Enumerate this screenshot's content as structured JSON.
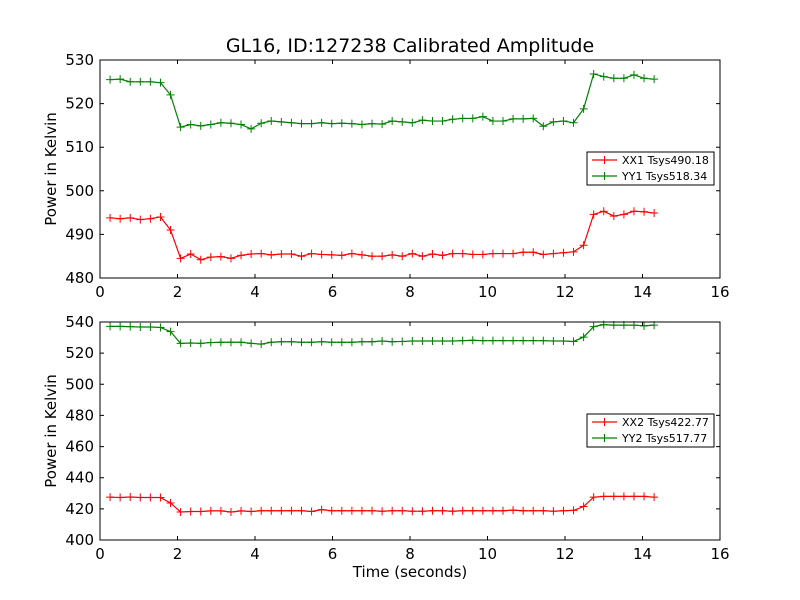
{
  "figure": {
    "title": "GL16, ID:127238 Calibrated Amplitude"
  },
  "chart_data": [
    {
      "type": "line",
      "title": "GL16, ID:127238 Calibrated Amplitude",
      "xlabel": "",
      "ylabel": "Power in Kelvin",
      "xlim": [
        0,
        16
      ],
      "ylim": [
        480,
        530
      ],
      "xticks": [
        "0",
        "2",
        "4",
        "6",
        "8",
        "10",
        "12",
        "14",
        "16"
      ],
      "yticks": [
        "480",
        "490",
        "500",
        "510",
        "520",
        "530"
      ],
      "grid": false,
      "legend_position": "center-right",
      "x": [
        0.26,
        0.52,
        0.78,
        1.04,
        1.3,
        1.56,
        1.82,
        2.08,
        2.34,
        2.6,
        2.86,
        3.12,
        3.38,
        3.64,
        3.9,
        4.16,
        4.42,
        4.68,
        4.94,
        5.2,
        5.46,
        5.72,
        5.98,
        6.24,
        6.5,
        6.76,
        7.02,
        7.28,
        7.54,
        7.8,
        8.06,
        8.32,
        8.58,
        8.84,
        9.1,
        9.36,
        9.62,
        9.88,
        10.14,
        10.4,
        10.66,
        10.92,
        11.18,
        11.44,
        11.7,
        11.96,
        12.22,
        12.48,
        12.74,
        13.0,
        13.26,
        13.52,
        13.78,
        14.04,
        14.3
      ],
      "series": [
        {
          "name": "XX1 Tsys490.18",
          "color": "#ff0000",
          "values": [
            493.8,
            493.6,
            493.8,
            493.4,
            493.6,
            494.0,
            491.0,
            484.5,
            485.5,
            484.2,
            484.8,
            484.9,
            484.5,
            485.2,
            485.5,
            485.6,
            485.3,
            485.5,
            485.5,
            485.0,
            485.6,
            485.4,
            485.3,
            485.2,
            485.6,
            485.3,
            485.0,
            485.0,
            485.3,
            485.0,
            485.6,
            485.0,
            485.5,
            485.2,
            485.6,
            485.6,
            485.4,
            485.4,
            485.6,
            485.6,
            485.6,
            485.9,
            485.9,
            485.4,
            485.6,
            485.8,
            486.0,
            487.5,
            494.6,
            495.3,
            494.2,
            494.6,
            495.3,
            495.2,
            494.9
          ]
        },
        {
          "name": "YY1 Tsys518.34",
          "color": "#008000",
          "values": [
            525.5,
            525.6,
            525.0,
            525.0,
            525.0,
            524.8,
            522.0,
            514.6,
            515.2,
            514.9,
            515.2,
            515.6,
            515.5,
            515.2,
            514.2,
            515.5,
            516.0,
            515.8,
            515.6,
            515.4,
            515.4,
            515.6,
            515.4,
            515.5,
            515.4,
            515.2,
            515.4,
            515.3,
            516.0,
            515.8,
            515.6,
            516.2,
            516.0,
            516.0,
            516.4,
            516.6,
            516.6,
            517.0,
            516.0,
            516.0,
            516.5,
            516.5,
            516.6,
            514.8,
            515.8,
            516.0,
            515.6,
            518.8,
            526.8,
            526.2,
            525.8,
            525.8,
            526.6,
            525.8,
            525.6
          ]
        }
      ]
    },
    {
      "type": "line",
      "title": "",
      "xlabel": "Time (seconds)",
      "ylabel": "Power in Kelvin",
      "xlim": [
        0,
        16
      ],
      "ylim": [
        400,
        540
      ],
      "xticks": [
        "0",
        "2",
        "4",
        "6",
        "8",
        "10",
        "12",
        "14",
        "16"
      ],
      "yticks": [
        "400",
        "420",
        "440",
        "460",
        "480",
        "500",
        "520",
        "540"
      ],
      "grid": false,
      "legend_position": "center-right",
      "x": [
        0.26,
        0.52,
        0.78,
        1.04,
        1.3,
        1.56,
        1.82,
        2.08,
        2.34,
        2.6,
        2.86,
        3.12,
        3.38,
        3.64,
        3.9,
        4.16,
        4.42,
        4.68,
        4.94,
        5.2,
        5.46,
        5.72,
        5.98,
        6.24,
        6.5,
        6.76,
        7.02,
        7.28,
        7.54,
        7.8,
        8.06,
        8.32,
        8.58,
        8.84,
        9.1,
        9.36,
        9.62,
        9.88,
        10.14,
        10.4,
        10.66,
        10.92,
        11.18,
        11.44,
        11.7,
        11.96,
        12.22,
        12.48,
        12.74,
        13.0,
        13.26,
        13.52,
        13.78,
        14.04,
        14.3
      ],
      "series": [
        {
          "name": "XX2 Tsys422.77",
          "color": "#ff0000",
          "values": [
            427.5,
            427.3,
            427.6,
            427.3,
            427.3,
            427.3,
            423.8,
            418.0,
            418.3,
            418.3,
            418.7,
            418.7,
            418.0,
            418.7,
            418.3,
            418.8,
            418.8,
            418.8,
            418.8,
            418.8,
            418.3,
            419.5,
            418.8,
            418.8,
            418.8,
            418.8,
            418.8,
            418.5,
            418.8,
            418.8,
            418.5,
            418.5,
            418.8,
            418.8,
            418.5,
            418.8,
            418.8,
            418.8,
            418.8,
            418.8,
            419.2,
            418.8,
            418.8,
            418.8,
            418.5,
            418.8,
            419.0,
            421.5,
            427.5,
            428.0,
            428.0,
            428.0,
            428.0,
            428.0,
            427.5
          ]
        },
        {
          "name": "YY2 Tsys517.77",
          "color": "#008000",
          "values": [
            537.2,
            537.2,
            537.0,
            536.8,
            536.8,
            536.5,
            533.8,
            526.3,
            526.5,
            526.3,
            526.8,
            527.0,
            527.0,
            527.0,
            526.3,
            525.8,
            527.0,
            527.3,
            527.3,
            527.0,
            527.0,
            527.3,
            527.0,
            527.0,
            527.0,
            527.3,
            527.3,
            527.8,
            527.3,
            527.5,
            527.8,
            527.8,
            527.8,
            527.8,
            527.8,
            528.0,
            528.3,
            528.0,
            528.0,
            528.0,
            528.0,
            528.0,
            528.0,
            528.0,
            527.8,
            527.8,
            527.5,
            530.3,
            537.0,
            538.3,
            538.0,
            538.0,
            538.0,
            537.5,
            538.0
          ]
        }
      ]
    }
  ]
}
